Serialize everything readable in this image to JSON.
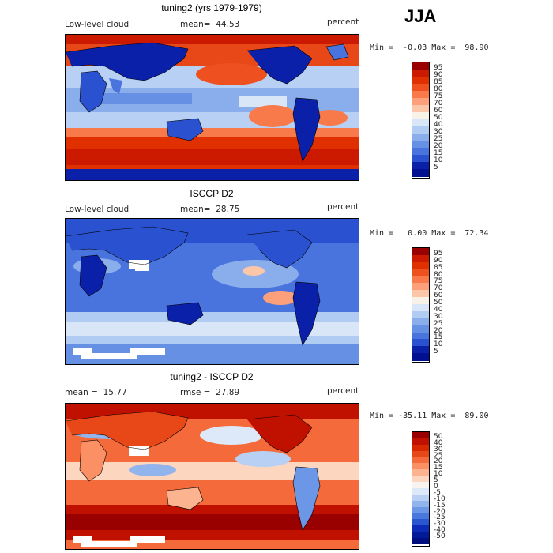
{
  "season": "JJA",
  "panels": [
    {
      "title": "tuning2 (yrs 1979-1979)",
      "left_label": "Low-level cloud",
      "stat_label": "mean=  44.53",
      "units": "percent",
      "minmax": "Min =  -0.03 Max =  98.90",
      "levels": [
        "95",
        "90",
        "85",
        "80",
        "75",
        "70",
        "60",
        "50",
        "40",
        "30",
        "25",
        "20",
        "15",
        "10",
        "5"
      ],
      "colors": [
        "#990000",
        "#cc1a00",
        "#e03000",
        "#ef5020",
        "#f87a4a",
        "#fba07a",
        "#fcc7a8",
        "#f7f1e8",
        "#d8e6f8",
        "#b0ccf2",
        "#8aaeeb",
        "#6690e4",
        "#4a74dd",
        "#2a52d0",
        "#0a20a8",
        "#001090"
      ]
    },
    {
      "title": "ISCCP D2",
      "left_label": "Low-level cloud",
      "stat_label": "mean=  28.75",
      "units": "percent",
      "minmax": "Min =   0.00 Max =  72.34",
      "levels": [
        "95",
        "90",
        "85",
        "80",
        "75",
        "70",
        "60",
        "50",
        "40",
        "30",
        "25",
        "20",
        "15",
        "10",
        "5"
      ],
      "colors": [
        "#990000",
        "#cc1a00",
        "#e03000",
        "#ef5020",
        "#f87a4a",
        "#fba07a",
        "#fcc7a8",
        "#f7f1e8",
        "#d8e6f8",
        "#b0ccf2",
        "#8aaeeb",
        "#6690e4",
        "#4a74dd",
        "#2a52d0",
        "#0a20a8",
        "#001090"
      ]
    },
    {
      "title": "tuning2 - ISCCP D2",
      "left_label": "mean =  15.77",
      "stat_label": "rmse =  27.89",
      "units": "percent",
      "minmax": "Min = -35.11 Max =  89.00",
      "levels": [
        "50",
        "40",
        "30",
        "25",
        "20",
        "15",
        "10",
        "5",
        "0",
        "-5",
        "-10",
        "-15",
        "-20",
        "-25",
        "-30",
        "-40",
        "-50"
      ],
      "colors": [
        "#990000",
        "#c01000",
        "#d82800",
        "#e84818",
        "#f46a3a",
        "#fa9064",
        "#fcb490",
        "#fdd6c0",
        "#f8f3ee",
        "#dde9f8",
        "#b8d0f3",
        "#92b4ed",
        "#6c96e6",
        "#4a78dd",
        "#2a56d0",
        "#0c2cb8",
        "#001a9a",
        "#000e80"
      ]
    }
  ]
}
